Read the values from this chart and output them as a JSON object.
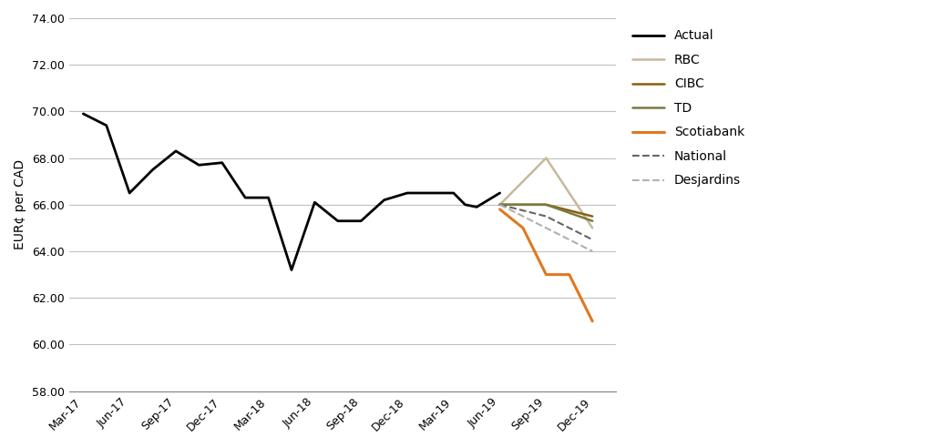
{
  "title": "",
  "ylabel": "EUR¢ per CAD",
  "background_color": "#ffffff",
  "plot_bg_color": "#ffffff",
  "grid_color": "#c0c0c0",
  "ylim": [
    58.0,
    74.0
  ],
  "yticks": [
    58.0,
    60.0,
    62.0,
    64.0,
    66.0,
    68.0,
    70.0,
    72.0,
    74.0
  ],
  "x_labels": [
    "Mar-17",
    "Jun-17",
    "Sep-17",
    "Dec-17",
    "Mar-18",
    "Jun-18",
    "Sep-18",
    "Dec-18",
    "Mar-19",
    "Jun-19",
    "Sep-19",
    "Dec-19"
  ],
  "actual": {
    "x": [
      0,
      0.5,
      1,
      1.5,
      2,
      2.5,
      3,
      3.5,
      4,
      4.5,
      5,
      5.5,
      6,
      6.5,
      7,
      7.5,
      8,
      8.25,
      8.5,
      8.75,
      9
    ],
    "y": [
      69.9,
      69.4,
      66.5,
      67.5,
      68.3,
      67.7,
      67.8,
      66.3,
      66.3,
      63.2,
      66.1,
      65.3,
      65.3,
      66.2,
      66.5,
      66.5,
      66.5,
      66.0,
      65.9,
      66.2,
      66.5
    ],
    "color": "#000000",
    "lw": 2.0,
    "ls": "-",
    "label": "Actual"
  },
  "rbc": {
    "x": [
      9,
      10,
      11
    ],
    "y": [
      66.0,
      68.0,
      65.0
    ],
    "color": "#c8b89a",
    "lw": 1.8,
    "ls": "-",
    "label": "RBC"
  },
  "cibc": {
    "x": [
      9,
      10,
      11
    ],
    "y": [
      66.0,
      66.0,
      65.5
    ],
    "color": "#8B5E10",
    "lw": 1.8,
    "ls": "-",
    "label": "CIBC"
  },
  "td": {
    "x": [
      9,
      10,
      11
    ],
    "y": [
      66.0,
      66.0,
      65.3
    ],
    "color": "#7a7a40",
    "lw": 1.8,
    "ls": "-",
    "label": "TD"
  },
  "scotiabank": {
    "x": [
      9,
      9.5,
      10,
      10.5,
      11
    ],
    "y": [
      65.8,
      65.0,
      63.0,
      63.0,
      61.0
    ],
    "color": "#e07820",
    "lw": 2.2,
    "ls": "-",
    "label": "Scotiabank"
  },
  "national": {
    "x": [
      9,
      10,
      11
    ],
    "y": [
      66.0,
      65.5,
      64.5
    ],
    "color": "#666666",
    "lw": 1.5,
    "ls": "--",
    "label": "National"
  },
  "desjardins": {
    "x": [
      9,
      10,
      11
    ],
    "y": [
      66.0,
      65.0,
      64.0
    ],
    "color": "#b0b0b0",
    "lw": 1.5,
    "ls": "--",
    "label": "Desjardins"
  }
}
